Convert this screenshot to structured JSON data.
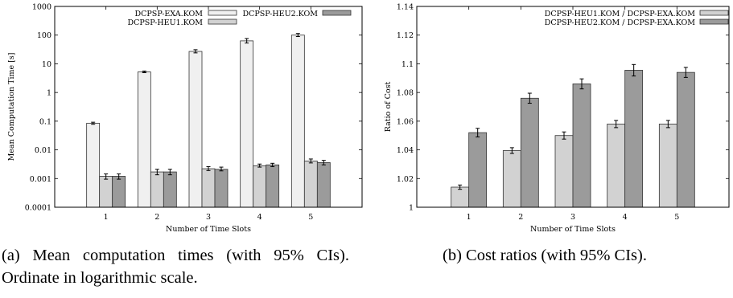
{
  "chart_data": [
    {
      "type": "bar",
      "ylabel": "Mean Computation Time [s]",
      "xlabel": "Number of Time Slots",
      "scale": "log",
      "ylim": [
        0.0001,
        1000
      ],
      "yticks": [
        "0.0001",
        "0.001",
        "0.01",
        "0.1",
        "1",
        "10",
        "100",
        "1000"
      ],
      "yticks_values": [
        0.0001,
        0.001,
        0.01,
        0.1,
        1,
        10,
        100,
        1000
      ],
      "categories": [
        "1",
        "2",
        "3",
        "4",
        "5"
      ],
      "legend_position": "top",
      "series": [
        {
          "name": "DCPSP-EXA.KOM",
          "color": "#f0f0f0",
          "values": [
            0.085,
            5.2,
            27,
            63,
            100
          ],
          "ci_low": [
            0.078,
            4.9,
            24,
            53,
            89
          ],
          "ci_high": [
            0.092,
            5.6,
            31,
            76,
            114
          ]
        },
        {
          "name": "DCPSP-HEU1.KOM",
          "color": "#d2d2d2",
          "values": [
            0.0012,
            0.0017,
            0.0022,
            0.0028,
            0.0041
          ],
          "ci_low": [
            0.00095,
            0.00135,
            0.0019,
            0.0025,
            0.0035
          ],
          "ci_high": [
            0.00145,
            0.0021,
            0.0026,
            0.0032,
            0.0048
          ]
        },
        {
          "name": "DCPSP-HEU2.KOM",
          "color": "#9b9b9b",
          "values": [
            0.0012,
            0.0017,
            0.0021,
            0.003,
            0.0036
          ],
          "ci_low": [
            0.00095,
            0.00135,
            0.00185,
            0.0026,
            0.003
          ],
          "ci_high": [
            0.00145,
            0.0021,
            0.0025,
            0.0034,
            0.0043
          ]
        }
      ]
    },
    {
      "type": "bar",
      "ylabel": "Ratio of Cost",
      "xlabel": "Number of Time Slots",
      "ylim": [
        1,
        1.14
      ],
      "yticks": [
        "1",
        "1.02",
        "1.04",
        "1.06",
        "1.08",
        "1.1",
        "1.12",
        "1.14"
      ],
      "yticks_values": [
        1,
        1.02,
        1.04,
        1.06,
        1.08,
        1.1,
        1.12,
        1.14
      ],
      "categories": [
        "1",
        "2",
        "3",
        "4",
        "5"
      ],
      "legend_position": "top-right",
      "series": [
        {
          "name": "DCPSP-HEU1.KOM / DCPSP-EXA.KOM",
          "color": "#d2d2d2",
          "values": [
            1.014,
            1.0395,
            1.05,
            1.058,
            1.058
          ],
          "ci_low": [
            1.0125,
            1.0375,
            1.0475,
            1.0555,
            1.0555
          ],
          "ci_high": [
            1.0155,
            1.0415,
            1.0525,
            1.0605,
            1.0605
          ]
        },
        {
          "name": "DCPSP-HEU2.KOM / DCPSP-EXA.KOM",
          "color": "#9b9b9b",
          "values": [
            1.052,
            1.076,
            1.086,
            1.0955,
            1.094
          ],
          "ci_low": [
            1.049,
            1.0725,
            1.0825,
            1.0915,
            1.0905
          ],
          "ci_high": [
            1.055,
            1.0795,
            1.0895,
            1.0995,
            1.0975
          ]
        }
      ]
    }
  ],
  "captions": {
    "a": "(a) Mean computation times (with 95% CIs). Ordinate in logarithmic scale.",
    "b": "(b) Cost ratios (with 95% CIs)."
  }
}
